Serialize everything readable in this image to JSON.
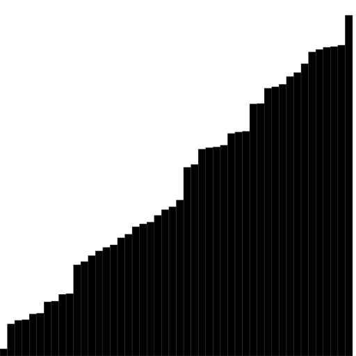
{
  "chart_data": {
    "type": "bar",
    "title": "",
    "xlabel": "",
    "ylabel": "",
    "axes_visible": false,
    "grid": false,
    "ylim": [
      0,
      100
    ],
    "bar_color": "#000000",
    "bar_outline_color": "#444444",
    "background_color": "#ffffff",
    "values": [
      2,
      9,
      10,
      10.2,
      11.8,
      12,
      15.2,
      15.4,
      17.3,
      17.5,
      25.6,
      26.5,
      28.2,
      29.5,
      30.5,
      31.2,
      33.2,
      34.2,
      36.3,
      37.1,
      37.6,
      39.5,
      41.1,
      41.9,
      43.8,
      53,
      53.8,
      58.1,
      58.5,
      58.7,
      59.2,
      62.5,
      62.9,
      63.1,
      70.8,
      70.9,
      75.2,
      75.6,
      76.3,
      78.5,
      79.6,
      82.1,
      85.4,
      86.1,
      86.7,
      86.9,
      87.3,
      95.7
    ]
  }
}
